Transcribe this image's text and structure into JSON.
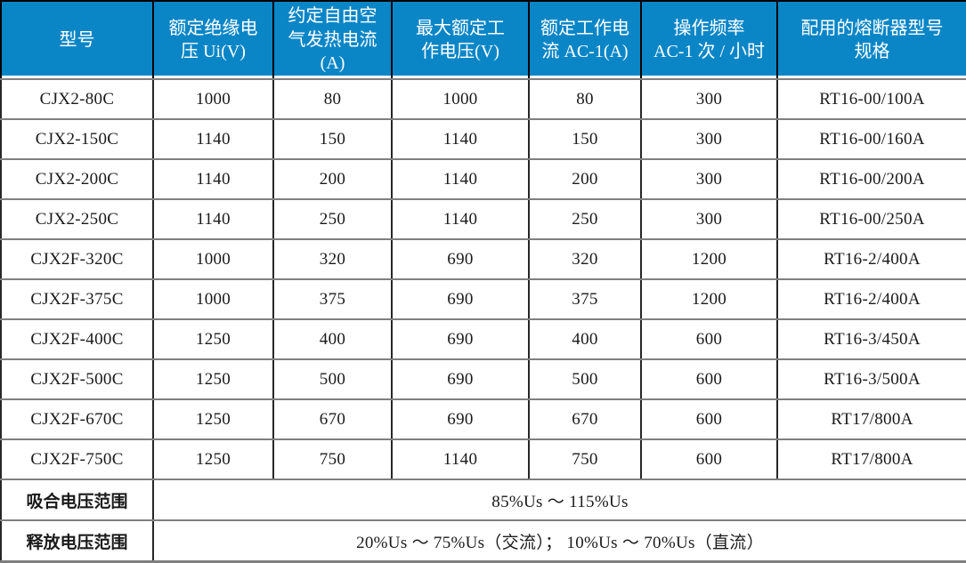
{
  "colors": {
    "header_bg": "#0a86c7",
    "header_text": "#ffffff",
    "text": "#1a1a1a",
    "grid_horizontal": "#7f7f7f",
    "grid_vertical": "#262626",
    "body_bg": "#ffffff"
  },
  "table": {
    "columns": [
      "型号",
      "额定绝缘电\n压 Ui(V)",
      "约定自由空\n气发热电流\n(A)",
      "最大额定工\n作电压(V)",
      "额定工作电\n流 AC-1(A)",
      "操作频率\nAC-1 次 / 小时",
      "配用的熔断器型号\n规格"
    ],
    "rows": [
      [
        "CJX2-80C",
        "1000",
        "80",
        "1000",
        "80",
        "300",
        "RT16-00/100A"
      ],
      [
        "CJX2-150C",
        "1140",
        "150",
        "1140",
        "150",
        "300",
        "RT16-00/160A"
      ],
      [
        "CJX2-200C",
        "1140",
        "200",
        "1140",
        "200",
        "300",
        "RT16-00/200A"
      ],
      [
        "CJX2-250C",
        "1140",
        "250",
        "1140",
        "250",
        "300",
        "RT16-00/250A"
      ],
      [
        "CJX2F-320C",
        "1000",
        "320",
        "690",
        "320",
        "1200",
        "RT16-2/400A"
      ],
      [
        "CJX2F-375C",
        "1000",
        "375",
        "690",
        "375",
        "1200",
        "RT16-2/400A"
      ],
      [
        "CJX2F-400C",
        "1250",
        "400",
        "690",
        "400",
        "600",
        "RT16-3/450A"
      ],
      [
        "CJX2F-500C",
        "1250",
        "500",
        "690",
        "500",
        "600",
        "RT16-3/500A"
      ],
      [
        "CJX2F-670C",
        "1250",
        "670",
        "690",
        "670",
        "600",
        "RT17/800A"
      ],
      [
        "CJX2F-750C",
        "1250",
        "750",
        "1140",
        "750",
        "600",
        "RT17/800A"
      ]
    ],
    "footer_rows": [
      {
        "label": "吸合电压范围",
        "value": "85%Us ～ 115%Us"
      },
      {
        "label": "释放电压范围",
        "value": "20%Us ～ 75%Us（交流）； 10%Us ～ 70%Us（直流）"
      }
    ]
  }
}
